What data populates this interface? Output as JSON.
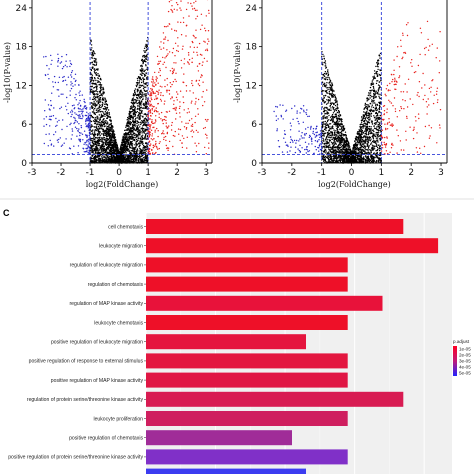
{
  "panel_c_label": "C",
  "legend_title": "p.adjust",
  "legend_labels": [
    "1e-05",
    "2e-05",
    "3e-05",
    "4e-05",
    "5e-05"
  ],
  "colors": {
    "up_points": "#e8201c",
    "down_points": "#2727c8",
    "ns_points": "#000000",
    "threshold_lines": "#2f3fd8",
    "panel_background": "#f0f0f0"
  },
  "chart_data": [
    {
      "type": "scatter",
      "xlabel": "log2(FoldChange)",
      "ylabel": "-log10(P-value)",
      "xlim": [
        -3,
        3.2
      ],
      "ylim": [
        0,
        28
      ],
      "x_ticks": [
        "-3",
        "-2",
        "-1",
        "0",
        "1",
        "2",
        "3"
      ],
      "y_ticks": [
        "0",
        "6",
        "12",
        "18",
        "24"
      ],
      "thresholds": {
        "x": [
          -1,
          1
        ],
        "y": 1.3
      },
      "series": [
        {
          "group": "down",
          "count": 300,
          "x_range": [
            -2.6,
            -1
          ],
          "y_max": 17
        },
        {
          "group": "not significant",
          "count": 3000,
          "x_range": [
            -1,
            1
          ],
          "y_max": 20
        },
        {
          "group": "up",
          "count": 520,
          "x_range": [
            1,
            3.1
          ],
          "y_max": 26.5
        }
      ]
    },
    {
      "type": "scatter",
      "xlabel": "log2(FoldChange)",
      "ylabel": "-log10(P-value)",
      "xlim": [
        -3,
        3.2
      ],
      "ylim": [
        0,
        28
      ],
      "x_ticks": [
        "-3",
        "-2",
        "-1",
        "0",
        "1",
        "2",
        "3"
      ],
      "y_ticks": [
        "0",
        "6",
        "12",
        "18",
        "24"
      ],
      "thresholds": {
        "x": [
          -1,
          1
        ],
        "y": 1.3
      },
      "series": [
        {
          "group": "down",
          "count": 150,
          "x_range": [
            -2.6,
            -1
          ],
          "y_max": 9
        },
        {
          "group": "not significant",
          "count": 2400,
          "x_range": [
            -1,
            1
          ],
          "y_max": 18
        },
        {
          "group": "up",
          "count": 200,
          "x_range": [
            1,
            3
          ],
          "y_max": 22
        }
      ]
    },
    {
      "type": "bar",
      "orientation": "horizontal",
      "color_legend": "p.adjust",
      "categories": [
        "cell chemotaxis",
        "leukocyte migration",
        "regulation of leukocyte migration",
        "regulation of chemotaxis",
        "regulation of MAP kinase activity",
        "leukocyte chemotaxis",
        "positive regulation of leukocyte migration",
        "positive regulation of response to external stimulus",
        "positive regulation of MAP kinase activity",
        "regulation of protein serine/threonine kinase activity",
        "leukocyte proliferation",
        "positive regulation of chemotaxis",
        "positive regulation of protein serine/threonine kinase activity",
        "myeloid leukocyte migration"
      ],
      "values": [
        18.5,
        21,
        14.5,
        14.5,
        17,
        14.5,
        11.5,
        14.5,
        14.5,
        18.5,
        14.5,
        10.5,
        14.5,
        11.5
      ],
      "colors": [
        "#ee1028",
        "#ee1028",
        "#ee1028",
        "#ee1028",
        "#e8123a",
        "#ee1028",
        "#e5153e",
        "#e3163f",
        "#e01644",
        "#d81b52",
        "#cf1f5f",
        "#a02c98",
        "#8030c8",
        "#3c3cf0"
      ]
    }
  ]
}
